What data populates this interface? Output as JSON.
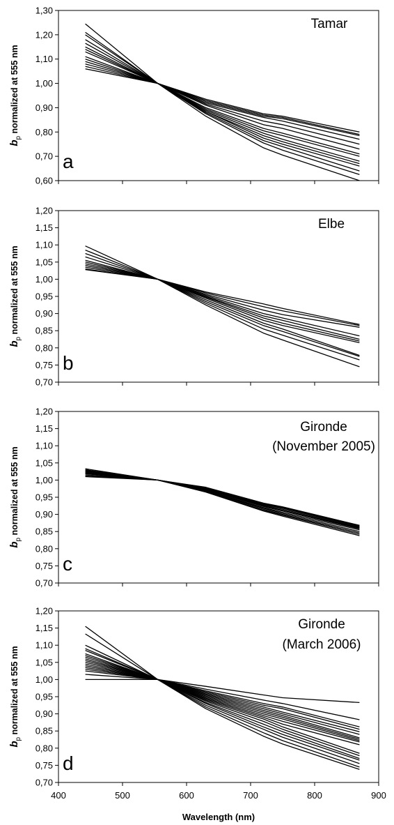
{
  "figure": {
    "xlabel": "Wavelength (nm)",
    "ylabel_bold": "b",
    "ylabel_sub": "p",
    "ylabel_rest": " normalized at 555 nm",
    "ylabel_rest_a": " normalized at  555 nm"
  },
  "chart_data": [
    {
      "type": "line",
      "panel_label": "a",
      "title_lines": [
        "Tamar"
      ],
      "ylim": [
        0.6,
        1.3
      ],
      "yticks": [
        "0,60",
        "0,70",
        "0,80",
        "0,90",
        "1,00",
        "1,10",
        "1,20",
        "1,30"
      ],
      "xlim": [
        400,
        900
      ],
      "x": [
        442,
        555,
        630,
        720,
        750,
        870
      ],
      "series": [
        {
          "values": [
            1.245,
            1.0,
            0.865,
            0.735,
            0.705,
            0.6
          ]
        },
        {
          "values": [
            1.21,
            1.0,
            0.875,
            0.755,
            0.725,
            0.625
          ]
        },
        {
          "values": [
            1.2,
            1.0,
            0.88,
            0.765,
            0.74,
            0.64
          ]
        },
        {
          "values": [
            1.18,
            1.0,
            0.885,
            0.775,
            0.75,
            0.66
          ]
        },
        {
          "values": [
            1.165,
            1.0,
            0.885,
            0.785,
            0.76,
            0.67
          ]
        },
        {
          "values": [
            1.15,
            1.0,
            0.89,
            0.795,
            0.77,
            0.68
          ]
        },
        {
          "values": [
            1.14,
            1.0,
            0.895,
            0.805,
            0.785,
            0.7
          ]
        },
        {
          "values": [
            1.13,
            1.0,
            0.9,
            0.815,
            0.795,
            0.71
          ]
        },
        {
          "values": [
            1.11,
            1.0,
            0.91,
            0.83,
            0.815,
            0.73
          ]
        },
        {
          "values": [
            1.1,
            1.0,
            0.915,
            0.845,
            0.83,
            0.75
          ]
        },
        {
          "values": [
            1.09,
            1.0,
            0.92,
            0.86,
            0.845,
            0.77
          ]
        },
        {
          "values": [
            1.08,
            1.0,
            0.925,
            0.865,
            0.855,
            0.785
          ]
        },
        {
          "values": [
            1.07,
            1.0,
            0.93,
            0.87,
            0.86,
            0.79
          ]
        },
        {
          "values": [
            1.06,
            1.0,
            0.935,
            0.875,
            0.865,
            0.8
          ]
        }
      ]
    },
    {
      "type": "line",
      "panel_label": "b",
      "title_lines": [
        "Elbe"
      ],
      "ylim": [
        0.7,
        1.2
      ],
      "yticks": [
        "0,70",
        "0,75",
        "0,80",
        "0,85",
        "0,90",
        "0,95",
        "1,00",
        "1,05",
        "1,10",
        "1,15",
        "1,20"
      ],
      "xlim": [
        400,
        900
      ],
      "x": [
        442,
        555,
        630,
        720,
        750,
        870
      ],
      "series": [
        {
          "values": [
            1.097,
            1.0,
            0.925,
            0.843,
            0.823,
            0.745
          ]
        },
        {
          "values": [
            1.085,
            1.0,
            0.93,
            0.855,
            0.837,
            0.765
          ]
        },
        {
          "values": [
            1.075,
            1.0,
            0.935,
            0.865,
            0.848,
            0.775
          ]
        },
        {
          "values": [
            1.065,
            1.0,
            0.94,
            0.872,
            0.855,
            0.778
          ]
        },
        {
          "values": [
            1.055,
            1.0,
            0.945,
            0.88,
            0.865,
            0.815
          ]
        },
        {
          "values": [
            1.05,
            1.0,
            0.948,
            0.887,
            0.872,
            0.82
          ]
        },
        {
          "values": [
            1.045,
            1.0,
            0.95,
            0.893,
            0.88,
            0.825
          ]
        },
        {
          "values": [
            1.04,
            1.0,
            0.953,
            0.9,
            0.887,
            0.835
          ]
        },
        {
          "values": [
            1.035,
            1.0,
            0.956,
            0.91,
            0.897,
            0.86
          ]
        },
        {
          "values": [
            1.03,
            1.0,
            0.96,
            0.92,
            0.908,
            0.865
          ]
        },
        {
          "values": [
            1.028,
            1.0,
            0.963,
            0.928,
            0.915,
            0.868
          ]
        }
      ]
    },
    {
      "type": "line",
      "panel_label": "c",
      "title_lines": [
        "Gironde",
        "(November 2005)"
      ],
      "ylim": [
        0.7,
        1.2
      ],
      "yticks": [
        "0,70",
        "0,75",
        "0,80",
        "0,85",
        "0,90",
        "0,95",
        "1,00",
        "1,05",
        "1,10",
        "1,15",
        "1,20"
      ],
      "xlim": [
        400,
        900
      ],
      "x": [
        442,
        555,
        630,
        720,
        750,
        870
      ],
      "series": [
        {
          "values": [
            1.033,
            1.0,
            0.965,
            0.91,
            0.895,
            0.838
          ]
        },
        {
          "values": [
            1.03,
            1.0,
            0.966,
            0.912,
            0.898,
            0.842
          ]
        },
        {
          "values": [
            1.028,
            1.0,
            0.968,
            0.915,
            0.9,
            0.846
          ]
        },
        {
          "values": [
            1.026,
            1.0,
            0.969,
            0.918,
            0.903,
            0.85
          ]
        },
        {
          "values": [
            1.024,
            1.0,
            0.97,
            0.92,
            0.906,
            0.855
          ]
        },
        {
          "values": [
            1.022,
            1.0,
            0.972,
            0.923,
            0.91,
            0.858
          ]
        },
        {
          "values": [
            1.02,
            1.0,
            0.973,
            0.925,
            0.912,
            0.86
          ]
        },
        {
          "values": [
            1.018,
            1.0,
            0.974,
            0.927,
            0.915,
            0.862
          ]
        },
        {
          "values": [
            1.015,
            1.0,
            0.976,
            0.929,
            0.918,
            0.864
          ]
        },
        {
          "values": [
            1.012,
            1.0,
            0.977,
            0.931,
            0.92,
            0.866
          ]
        },
        {
          "values": [
            1.01,
            1.0,
            0.979,
            0.933,
            0.922,
            0.868
          ]
        }
      ]
    },
    {
      "type": "line",
      "panel_label": "d",
      "title_lines": [
        "Gironde",
        "(March 2006)"
      ],
      "ylim": [
        0.7,
        1.2
      ],
      "yticks": [
        "0,70",
        "0,75",
        "0,80",
        "0,85",
        "0,90",
        "0,95",
        "1,00",
        "1,05",
        "1,10",
        "1,15",
        "1,20"
      ],
      "xlim": [
        400,
        900
      ],
      "x": [
        442,
        555,
        630,
        720,
        750,
        870
      ],
      "series": [
        {
          "values": [
            1.155,
            1.0,
            0.915,
            0.835,
            0.812,
            0.738
          ]
        },
        {
          "values": [
            1.133,
            1.0,
            0.92,
            0.845,
            0.822,
            0.745
          ]
        },
        {
          "values": [
            1.1,
            1.0,
            0.925,
            0.855,
            0.832,
            0.755
          ]
        },
        {
          "values": [
            1.09,
            1.0,
            0.93,
            0.862,
            0.84,
            0.765
          ]
        },
        {
          "values": [
            1.085,
            1.0,
            0.933,
            0.87,
            0.848,
            0.77
          ]
        },
        {
          "values": [
            1.075,
            1.0,
            0.937,
            0.878,
            0.855,
            0.778
          ]
        },
        {
          "values": [
            1.07,
            1.0,
            0.94,
            0.885,
            0.862,
            0.785
          ]
        },
        {
          "values": [
            1.065,
            1.0,
            0.943,
            0.89,
            0.87,
            0.81
          ]
        },
        {
          "values": [
            1.06,
            1.0,
            0.946,
            0.895,
            0.878,
            0.818
          ]
        },
        {
          "values": [
            1.055,
            1.0,
            0.949,
            0.9,
            0.885,
            0.822
          ]
        },
        {
          "values": [
            1.05,
            1.0,
            0.952,
            0.905,
            0.89,
            0.826
          ]
        },
        {
          "values": [
            1.045,
            1.0,
            0.955,
            0.91,
            0.895,
            0.83
          ]
        },
        {
          "values": [
            1.04,
            1.0,
            0.958,
            0.915,
            0.9,
            0.84
          ]
        },
        {
          "values": [
            1.035,
            1.0,
            0.961,
            0.92,
            0.905,
            0.848
          ]
        },
        {
          "values": [
            1.03,
            1.0,
            0.964,
            0.925,
            0.915,
            0.855
          ]
        },
        {
          "values": [
            1.025,
            1.0,
            0.967,
            0.93,
            0.92,
            0.862
          ]
        },
        {
          "values": [
            1.015,
            1.0,
            0.972,
            0.94,
            0.93,
            0.883
          ]
        },
        {
          "values": [
            1.0,
            1.0,
            0.98,
            0.955,
            0.947,
            0.933
          ]
        }
      ]
    }
  ]
}
